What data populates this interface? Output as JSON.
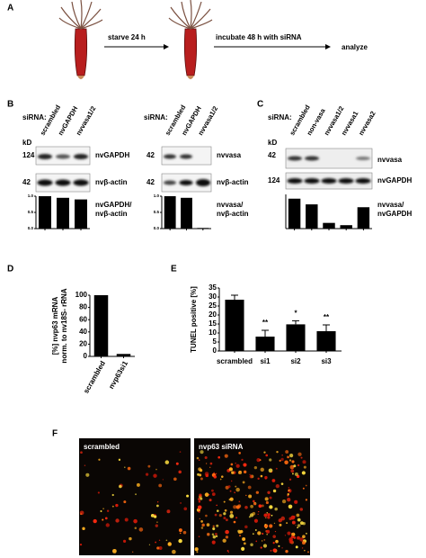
{
  "figure": {
    "panel_labels": [
      "A",
      "B",
      "C",
      "D",
      "E",
      "F"
    ],
    "panel_a": {
      "step1": "starve 24 h",
      "step2": "incubate 48 h with siRNA",
      "step3": "analyze"
    },
    "panel_b": {
      "left": {
        "sirna": "siRNA:",
        "kd": "kD",
        "markers": [
          "124",
          "42"
        ],
        "bands": [
          "nvGAPDH",
          "nvβ-actin"
        ],
        "ratio": [
          "nvGAPDH/",
          "nvβ-actin"
        ]
      },
      "right": {
        "sirna": "siRNA:",
        "markers": [
          "42",
          "42"
        ],
        "bands": [
          "nvvasa",
          "nvβ-actin"
        ],
        "ratio": [
          "nvvasa/",
          "nvβ-actin"
        ]
      }
    },
    "panel_c": {
      "sirna": "siRNA:",
      "kd": "kD",
      "markers": [
        "42",
        "124"
      ],
      "bands": [
        "nvvasa",
        "nvGAPDH"
      ],
      "ratio": [
        "nvvasa/",
        "nvGAPDH"
      ]
    },
    "panel_f": {
      "labels": [
        "scrambled",
        "nvp63 siRNA"
      ]
    }
  },
  "chart_data": [
    {
      "type": "bar",
      "categories": [
        "scrambled",
        "nvGAPDH",
        "nvvasa1/2"
      ],
      "values": [
        1.0,
        0.95,
        0.9
      ],
      "color": "#000000",
      "ylim": [
        0,
        1
      ],
      "yticks": [
        {
          "value": 0,
          "label": "0.0"
        },
        {
          "value": 0.5,
          "label": "0.5"
        },
        {
          "value": 1,
          "label": "1.0"
        }
      ]
    },
    {
      "type": "bar",
      "categories": [
        "scrambled",
        "nvGAPDH",
        "nvvasa1/2"
      ],
      "values": [
        1.0,
        0.95,
        0.02
      ],
      "color": "#000000",
      "ylim": [
        0,
        1
      ],
      "yticks": [
        {
          "value": 0,
          "label": "0.0"
        },
        {
          "value": 0.5,
          "label": "0.5"
        },
        {
          "value": 1,
          "label": "1.0"
        }
      ]
    },
    {
      "type": "bar",
      "categories": [
        "scrambled",
        "non-vasa",
        "nvvasa1/2",
        "nvvasa1",
        "nvvasa2"
      ],
      "values": [
        1.05,
        0.85,
        0.2,
        0.12,
        0.75
      ],
      "color": "#000000",
      "ylim": [
        0,
        1.2
      ],
      "yticks": []
    },
    {
      "type": "bar",
      "ylabel": [
        "[%] nvp63 mRNA",
        "norm. to nv18S- rRNA"
      ],
      "categories": [
        "scrambled",
        "nvp63si1"
      ],
      "values": [
        100,
        4
      ],
      "color": "#000000",
      "ylim": [
        0,
        100
      ],
      "yticks": [
        0,
        20,
        40,
        60,
        80,
        100
      ]
    },
    {
      "type": "bar",
      "ylabel": [
        "TUNEL positive [%]"
      ],
      "categories": [
        "scrambled",
        "si1",
        "si2",
        "si3"
      ],
      "values": [
        28.5,
        8,
        14.8,
        11
      ],
      "errors": [
        2.5,
        3.5,
        2,
        3.5
      ],
      "significance": [
        null,
        "**",
        "*",
        "**"
      ],
      "color": "#000000",
      "ylim": [
        0,
        35
      ],
      "yticks": [
        0,
        5,
        10,
        15,
        20,
        25,
        30,
        35
      ]
    }
  ]
}
